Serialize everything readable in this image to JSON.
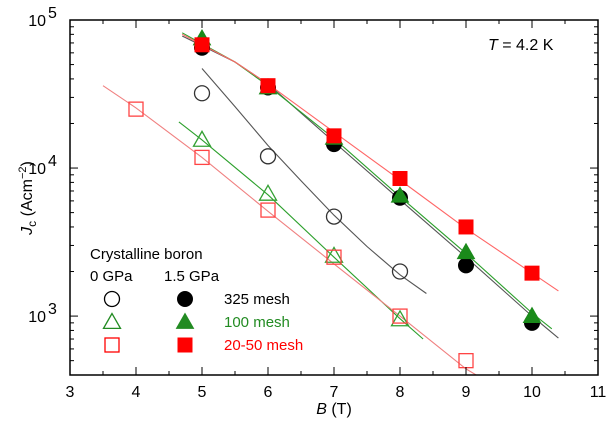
{
  "chart_data": {
    "type": "scatter",
    "title": "",
    "annotation": {
      "var": "T",
      "text": " = 4.2 K"
    },
    "xlabel": {
      "var": "B",
      "unit": " (T)"
    },
    "ylabel": {
      "var": "J",
      "sub": "c",
      "unit_open": " (Acm",
      "unit_sup": "−2",
      "unit_close": ")"
    },
    "x_scale": "linear",
    "y_scale": "log",
    "xlim": [
      3,
      11
    ],
    "ylim": [
      400,
      100000
    ],
    "x_ticks": [
      "3",
      "4",
      "5",
      "6",
      "7",
      "8",
      "9",
      "10",
      "11"
    ],
    "y_ticks": [
      {
        "value": 1000,
        "base": "10",
        "exp": "3"
      },
      {
        "value": 10000,
        "base": "10",
        "exp": "4"
      },
      {
        "value": 100000,
        "base": "10",
        "exp": "5"
      }
    ],
    "legend": {
      "title": "Crystalline boron",
      "col1_header": "0 GPa",
      "col2_header": "1.5 GPa",
      "rows": [
        {
          "label": "325 mesh",
          "color": "#000000",
          "open": "circle",
          "filled": "circle"
        },
        {
          "label": "100 mesh",
          "color": "#228B22",
          "open": "triangle",
          "filled": "triangle"
        },
        {
          "label": "20-50 mesh",
          "color": "#ff0000",
          "open": "square",
          "filled": "square"
        }
      ]
    },
    "series": [
      {
        "marker": "circle",
        "filled": false,
        "color": "#333333",
        "fit_color": "#555555",
        "points": [
          [
            5,
            32000
          ],
          [
            6,
            12000
          ],
          [
            7,
            4700
          ],
          [
            8,
            2000
          ]
        ],
        "fit": [
          [
            5,
            47000
          ],
          [
            5.5,
            26000
          ],
          [
            6,
            14200
          ],
          [
            6.5,
            8200
          ],
          [
            7,
            4800
          ],
          [
            7.5,
            2950
          ],
          [
            8,
            1900
          ],
          [
            8.4,
            1420
          ]
        ]
      },
      {
        "marker": "triangle",
        "filled": false,
        "color": "#33a033",
        "fit_color": "#2ca02c",
        "points": [
          [
            5,
            15500
          ],
          [
            6,
            6700
          ],
          [
            7,
            2550
          ],
          [
            8,
            950
          ]
        ],
        "fit": [
          [
            4.65,
            20500
          ],
          [
            5,
            15500
          ],
          [
            6,
            6600
          ],
          [
            7,
            2500
          ],
          [
            8,
            960
          ],
          [
            8.35,
            700
          ]
        ]
      },
      {
        "marker": "square",
        "filled": false,
        "color": "#ff4444",
        "fit_color": "#f08080",
        "points": [
          [
            4,
            25000
          ],
          [
            5,
            11800
          ],
          [
            6,
            5200
          ],
          [
            7,
            2500
          ],
          [
            8,
            1000
          ],
          [
            9,
            500
          ]
        ],
        "fit": [
          [
            3.5,
            36000
          ],
          [
            4,
            25500
          ],
          [
            5,
            11800
          ],
          [
            6,
            5100
          ],
          [
            7,
            2250
          ],
          [
            8,
            1000
          ],
          [
            9,
            440
          ],
          [
            9.35,
            355
          ]
        ]
      },
      {
        "marker": "circle",
        "filled": true,
        "color": "#000000",
        "fit_color": "#555555",
        "points": [
          [
            5,
            65000
          ],
          [
            6,
            35000
          ],
          [
            7,
            14500
          ],
          [
            8,
            6300
          ],
          [
            9,
            2200
          ],
          [
            10,
            900
          ]
        ],
        "fit": [
          [
            4.7,
            78000
          ],
          [
            5.5,
            52000
          ],
          [
            6,
            37000
          ],
          [
            7,
            15000
          ],
          [
            8,
            6100
          ],
          [
            9,
            2500
          ],
          [
            10,
            1000
          ],
          [
            10.4,
            710
          ]
        ]
      },
      {
        "marker": "triangle",
        "filled": true,
        "color": "#1a8a1a",
        "fit_color": "#2ca02c",
        "points": [
          [
            5,
            75000
          ],
          [
            6,
            35000
          ],
          [
            7,
            16000
          ],
          [
            8,
            6500
          ],
          [
            9,
            2700
          ],
          [
            10,
            1000
          ]
        ],
        "fit": [
          [
            4.7,
            82000
          ],
          [
            5.5,
            52000
          ],
          [
            6,
            36000
          ],
          [
            7,
            15800
          ],
          [
            8,
            6400
          ],
          [
            9,
            2650
          ],
          [
            10,
            1050
          ],
          [
            10.3,
            820
          ]
        ]
      },
      {
        "marker": "square",
        "filled": true,
        "color": "#ff0000",
        "fit_color": "#ff6666",
        "points": [
          [
            5,
            68000
          ],
          [
            6,
            36000
          ],
          [
            7,
            16500
          ],
          [
            8,
            8500
          ],
          [
            9,
            4000
          ],
          [
            10,
            1950
          ]
        ],
        "fit": [
          [
            4.7,
            80000
          ],
          [
            5.5,
            52000
          ],
          [
            6,
            37000
          ],
          [
            7,
            17500
          ],
          [
            8,
            8300
          ],
          [
            9,
            3900
          ],
          [
            10,
            1950
          ],
          [
            10.4,
            1480
          ]
        ]
      }
    ]
  }
}
